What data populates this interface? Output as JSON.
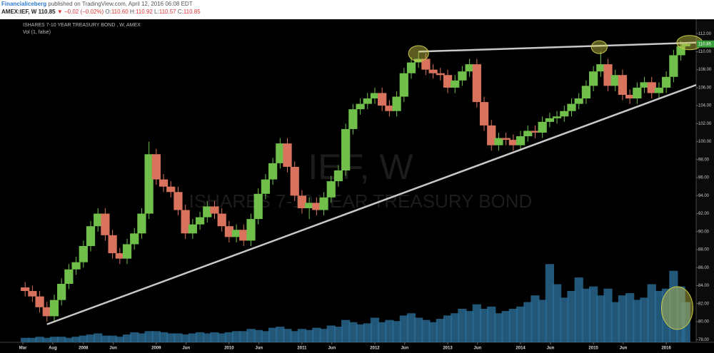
{
  "header": {
    "author": "Financialiceberg",
    "published": "published on TradingView.com, April 12, 2016 06:08 EDT",
    "symbol": "AMEX:IEF, W",
    "price": "110.85",
    "change": "▼ −0.02 (−0.02%)",
    "ohlc": [
      {
        "label": "O:",
        "value": "110.60"
      },
      {
        "label": "H:",
        "value": "110.92"
      },
      {
        "label": "L:",
        "value": "110.57"
      },
      {
        "label": "C:",
        "value": "110.85"
      }
    ]
  },
  "chart_data": {
    "type": "candlestick",
    "legend_title": "ISHARES 7-10 YEAR TREASURY BOND , W, AMEX",
    "indicator": "Vol (1, false)",
    "watermark": {
      "symbol": "IEF, W",
      "name": "ISHARES 7-10 YEAR TREASURY BOND"
    },
    "up_color": "#6fbf4a",
    "down_color": "#d9735e",
    "volume_color": "#2b6d96",
    "line_color": "#c8c8c8",
    "highlight_color": "#c9c84a",
    "x": [
      2007.2,
      2007.3,
      2007.4,
      2007.5,
      2007.6,
      2007.7,
      2007.8,
      2007.9,
      2008.0,
      2008.1,
      2008.2,
      2008.3,
      2008.4,
      2008.5,
      2008.6,
      2008.7,
      2008.8,
      2008.9,
      2009.0,
      2009.1,
      2009.2,
      2009.3,
      2009.4,
      2009.5,
      2009.6,
      2009.7,
      2009.8,
      2009.9,
      2010.0,
      2010.1,
      2010.2,
      2010.3,
      2010.4,
      2010.5,
      2010.6,
      2010.7,
      2010.8,
      2010.9,
      2011.0,
      2011.1,
      2011.2,
      2011.3,
      2011.4,
      2011.5,
      2011.6,
      2011.7,
      2011.8,
      2011.9,
      2012.0,
      2012.1,
      2012.2,
      2012.3,
      2012.4,
      2012.5,
      2012.6,
      2012.7,
      2012.8,
      2012.9,
      2013.0,
      2013.1,
      2013.2,
      2013.3,
      2013.4,
      2013.5,
      2013.6,
      2013.7,
      2013.8,
      2013.9,
      2014.0,
      2014.1,
      2014.2,
      2014.3,
      2014.4,
      2014.5,
      2014.6,
      2014.7,
      2014.8,
      2014.9,
      2015.0,
      2015.1,
      2015.2,
      2015.3,
      2015.4,
      2015.5,
      2015.6,
      2015.7,
      2015.8,
      2015.9,
      2016.0,
      2016.1,
      2016.2,
      2016.27
    ],
    "open": [
      83.8,
      83.4,
      82.8,
      81.6,
      80.6,
      82.4,
      84.2,
      85.8,
      86.6,
      88.4,
      90.6,
      92.0,
      89.6,
      87.6,
      87.0,
      88.6,
      89.8,
      92.0,
      98.6,
      95.8,
      95.0,
      94.4,
      92.4,
      89.8,
      90.8,
      91.6,
      92.8,
      92.0,
      90.6,
      89.4,
      90.2,
      89.0,
      91.4,
      94.2,
      95.8,
      97.6,
      99.8,
      97.2,
      94.0,
      92.6,
      93.2,
      92.4,
      93.8,
      95.6,
      96.8,
      101.4,
      103.6,
      104.2,
      104.8,
      105.4,
      104.0,
      103.4,
      105.0,
      107.6,
      108.8,
      109.2,
      108.0,
      107.6,
      107.4,
      106.0,
      106.8,
      107.8,
      108.6,
      104.4,
      101.8,
      99.6,
      100.4,
      100.2,
      99.6,
      100.6,
      101.2,
      101.0,
      102.2,
      102.6,
      102.8,
      103.4,
      104.2,
      104.8,
      106.2,
      107.8,
      108.6,
      106.2,
      107.4,
      105.2,
      104.8,
      106.0,
      106.6,
      105.4,
      106.0,
      107.2,
      109.6,
      110.6
    ],
    "high": [
      84.4,
      84.0,
      83.4,
      82.2,
      83.0,
      84.8,
      86.4,
      87.2,
      89.0,
      91.2,
      92.6,
      92.6,
      90.2,
      88.2,
      89.2,
      90.4,
      92.6,
      100.0,
      99.2,
      96.4,
      95.6,
      95.0,
      93.0,
      91.4,
      92.2,
      93.4,
      93.4,
      92.6,
      91.2,
      90.8,
      90.8,
      92.0,
      94.8,
      96.4,
      98.2,
      100.4,
      100.4,
      97.8,
      94.6,
      93.8,
      93.8,
      94.4,
      96.2,
      97.4,
      102.0,
      104.2,
      104.8,
      105.4,
      106.0,
      106.0,
      104.6,
      105.6,
      108.2,
      109.4,
      110.0,
      109.8,
      108.6,
      108.2,
      108.0,
      107.4,
      108.4,
      109.2,
      109.2,
      105.0,
      102.4,
      101.0,
      101.0,
      100.8,
      101.2,
      101.8,
      101.8,
      102.8,
      103.2,
      103.4,
      104.0,
      104.8,
      105.4,
      106.8,
      108.4,
      110.0,
      109.2,
      108.0,
      108.0,
      105.8,
      106.6,
      107.2,
      107.2,
      106.6,
      107.8,
      110.2,
      111.2,
      110.92
    ],
    "low": [
      82.8,
      82.2,
      81.0,
      80.0,
      80.0,
      81.8,
      83.6,
      85.2,
      86.0,
      87.8,
      90.0,
      89.0,
      87.0,
      86.4,
      86.4,
      88.0,
      89.2,
      91.4,
      95.2,
      94.4,
      93.8,
      91.8,
      89.2,
      89.2,
      90.2,
      91.0,
      91.4,
      90.0,
      88.8,
      88.8,
      88.4,
      88.4,
      90.8,
      93.6,
      95.2,
      97.0,
      96.6,
      93.4,
      92.0,
      91.4,
      91.8,
      91.8,
      93.2,
      95.0,
      96.2,
      100.8,
      103.0,
      103.6,
      104.2,
      103.4,
      102.8,
      102.8,
      104.4,
      107.0,
      108.2,
      107.4,
      107.0,
      106.8,
      105.4,
      105.4,
      106.2,
      107.2,
      103.8,
      101.2,
      99.0,
      99.0,
      99.6,
      99.0,
      99.0,
      100.0,
      100.4,
      100.4,
      101.6,
      102.0,
      102.2,
      102.8,
      103.6,
      104.2,
      105.6,
      107.2,
      105.6,
      105.6,
      104.6,
      104.2,
      104.2,
      105.4,
      104.8,
      104.8,
      105.4,
      106.6,
      109.0,
      110.57
    ],
    "close": [
      83.4,
      82.8,
      81.6,
      80.6,
      82.4,
      84.2,
      85.8,
      86.6,
      88.4,
      90.6,
      92.0,
      89.6,
      87.6,
      87.0,
      88.6,
      89.8,
      92.0,
      98.6,
      95.8,
      95.0,
      94.4,
      92.4,
      89.8,
      90.8,
      91.6,
      92.8,
      92.0,
      90.6,
      89.4,
      90.2,
      89.0,
      91.4,
      94.2,
      95.8,
      97.6,
      99.8,
      97.2,
      94.0,
      92.6,
      93.2,
      92.4,
      93.8,
      95.6,
      96.8,
      101.4,
      103.6,
      104.2,
      104.8,
      105.4,
      104.0,
      103.4,
      105.0,
      107.6,
      108.8,
      109.2,
      108.0,
      107.6,
      107.4,
      106.0,
      106.8,
      107.8,
      108.6,
      104.4,
      101.8,
      99.6,
      100.4,
      100.2,
      99.6,
      100.6,
      101.2,
      101.0,
      102.2,
      102.6,
      102.8,
      103.4,
      104.2,
      104.8,
      106.2,
      107.8,
      108.6,
      106.2,
      107.4,
      105.2,
      104.8,
      106.0,
      106.6,
      105.4,
      106.0,
      107.2,
      109.6,
      110.6,
      110.85
    ],
    "volume": [
      0.4,
      0.4,
      0.5,
      0.4,
      0.5,
      0.5,
      0.4,
      0.5,
      0.6,
      0.7,
      0.8,
      0.6,
      0.6,
      0.5,
      0.7,
      0.9,
      0.8,
      1.0,
      1.0,
      0.9,
      0.8,
      0.8,
      0.7,
      0.8,
      0.9,
      0.8,
      0.9,
      0.8,
      0.9,
      1.0,
      1.0,
      1.2,
      1.1,
      1.0,
      1.3,
      1.4,
      1.2,
      1.0,
      1.2,
      1.1,
      1.3,
      1.2,
      1.5,
      1.4,
      2.0,
      1.8,
      1.6,
      1.7,
      2.2,
      1.8,
      2.0,
      1.9,
      2.4,
      2.6,
      2.2,
      2.0,
      1.8,
      2.1,
      2.4,
      2.6,
      3.0,
      2.8,
      3.4,
      3.0,
      3.2,
      2.6,
      2.8,
      3.0,
      3.2,
      3.6,
      4.2,
      3.8,
      7.0,
      5.2,
      4.0,
      4.6,
      5.8,
      4.8,
      5.0,
      4.2,
      4.8,
      3.6,
      4.2,
      4.4,
      3.8,
      4.0,
      5.2,
      4.6,
      4.8,
      6.4,
      5.0,
      3.6
    ],
    "volume_lim": [
      0,
      12
    ],
    "xlim": [
      2007.12,
      2016.41
    ],
    "ylim": [
      77.7,
      113.6
    ],
    "xticks": [
      {
        "value": 2007.17,
        "label": "Mar"
      },
      {
        "value": 2007.58,
        "label": "Aug"
      },
      2008,
      {
        "value": 2008.41,
        "label": "Jun"
      },
      2009,
      {
        "value": 2009.41,
        "label": "Jun"
      },
      2010,
      {
        "value": 2010.41,
        "label": "Jun"
      },
      2011,
      {
        "value": 2011.41,
        "label": "Jun"
      },
      2012,
      {
        "value": 2012.41,
        "label": "Jun"
      },
      2013,
      {
        "value": 2013.41,
        "label": "Jun"
      },
      2014,
      {
        "value": 2014.41,
        "label": "Jun"
      },
      2015,
      {
        "value": 2015.41,
        "label": "Jun"
      },
      2016
    ],
    "yticks": [
      {
        "value": 78,
        "label": "78.00"
      },
      {
        "value": 80,
        "label": "80.00"
      },
      {
        "value": 82,
        "label": "82.00"
      },
      {
        "value": 84,
        "label": "84.00"
      },
      {
        "value": 86,
        "label": "86.00"
      },
      {
        "value": 88,
        "label": "88.00"
      },
      {
        "value": 90,
        "label": "90.00"
      },
      {
        "value": 92,
        "label": "92.00"
      },
      {
        "value": 94,
        "label": "94.00"
      },
      {
        "value": 96,
        "label": "96.00"
      },
      {
        "value": 98,
        "label": "98.00"
      },
      {
        "value": 100,
        "label": "100.00"
      },
      {
        "value": 102,
        "label": "102.00"
      },
      {
        "value": 104,
        "label": "104.00"
      },
      {
        "value": 106,
        "label": "106.00"
      },
      {
        "value": 108,
        "label": "108.00"
      },
      {
        "value": 110,
        "label": "110.00"
      },
      {
        "value": 112,
        "label": "112.00"
      }
    ],
    "grid": false,
    "trendlines": [
      {
        "x": [
          2007.5,
          2016.41
        ],
        "y": [
          79.7,
          106.3
        ]
      },
      {
        "x": [
          2012.6,
          2016.41
        ],
        "y": [
          110.0,
          111.0
        ]
      }
    ],
    "highlights": [
      {
        "x": 2012.6,
        "y": 109.8
      },
      {
        "x": 2015.08,
        "y": 110.5
      },
      {
        "x": 2016.32,
        "y": 111.0
      },
      {
        "x": 2016.15,
        "y": 81.5
      }
    ]
  }
}
